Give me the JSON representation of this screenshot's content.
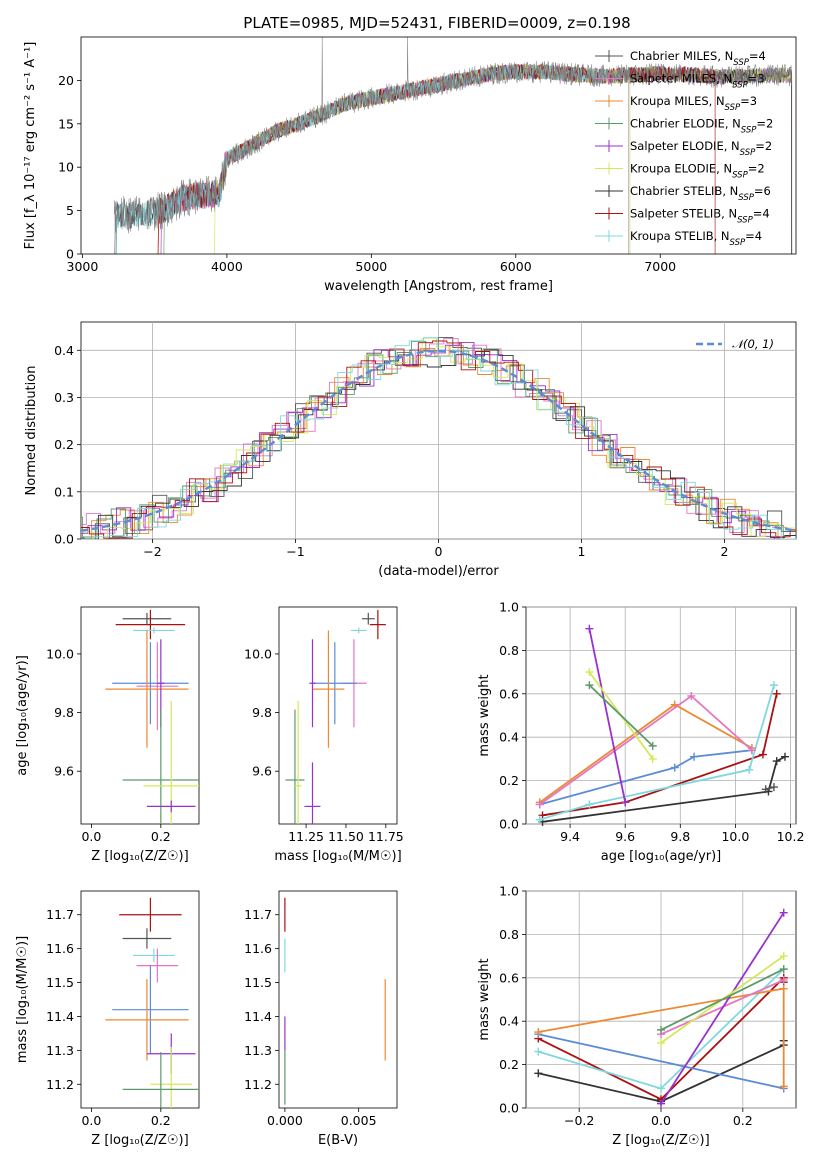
{
  "chart_data": [
    {
      "id": "spectrum",
      "type": "line",
      "title": "PLATE=0985, MJD=52431, FIBERID=0009, z=0.198",
      "xlabel": "wavelength [Angstrom, rest frame]",
      "ylabel": "Flux [f_λ 10⁻¹⁷ erg cm⁻² s⁻¹ A⁻¹]",
      "xlim": [
        2990,
        7940
      ],
      "ylim": [
        0,
        25
      ],
      "xticks": [
        3000,
        4000,
        5000,
        6000,
        7000
      ],
      "yticks": [
        0,
        5,
        10,
        15,
        20
      ],
      "grid": false,
      "legend_position": "right",
      "anchors_x": [
        3220,
        3400,
        3550,
        3700,
        3850,
        3950,
        4000,
        4100,
        4200,
        4350,
        4500,
        4650,
        4800,
        4950,
        5100,
        5250,
        5400,
        5550,
        5700,
        5850,
        6000,
        6200,
        6400,
        6600,
        6800,
        7000,
        7200,
        7400,
        7600,
        7800,
        7910
      ],
      "anchors_y": [
        4.5,
        4.6,
        5.0,
        6.5,
        6.8,
        7.0,
        11.0,
        11.8,
        12.8,
        14.2,
        15.0,
        16.0,
        17.2,
        17.8,
        18.3,
        18.8,
        19.3,
        19.8,
        20.3,
        20.8,
        21.0,
        21.0,
        20.7,
        20.5,
        20.6,
        20.8,
        20.7,
        20.4,
        20.5,
        20.6,
        20.6
      ],
      "series": [
        {
          "name": "Chabrier MILES, N_SSP=4",
          "legend_name": "Chabrier MILES",
          "nssp": "4",
          "color": "#555555"
        },
        {
          "name": "Salpeter MILES, N_SSP=3",
          "legend_name": "Salpeter MILES",
          "nssp": "3",
          "color": "#e377c2"
        },
        {
          "name": "Kroupa MILES, N_SSP=3",
          "legend_name": "Kroupa MILES",
          "nssp": "3",
          "color": "#ee8833"
        },
        {
          "name": "Chabrier ELODIE, N_SSP=2",
          "legend_name": "Chabrier ELODIE",
          "nssp": "2",
          "color": "#5d9a6a"
        },
        {
          "name": "Salpeter ELODIE, N_SSP=2",
          "legend_name": "Salpeter ELODIE",
          "nssp": "2",
          "color": "#9932cc"
        },
        {
          "name": "Kroupa ELODIE, N_SSP=2",
          "legend_name": "Kroupa ELODIE",
          "nssp": "2",
          "color": "#d4e85a"
        },
        {
          "name": "Chabrier STELIB, N_SSP=6",
          "legend_name": "Chabrier STELIB",
          "nssp": "6",
          "color": "#333333"
        },
        {
          "name": "Salpeter STELIB, N_SSP=4",
          "legend_name": "Salpeter STELIB",
          "nssp": "4",
          "color": "#aa1111"
        },
        {
          "name": "Kroupa STELIB, N_SSP=4",
          "legend_name": "Kroupa STELIB",
          "nssp": "4",
          "color": "#7fd8e0"
        }
      ]
    },
    {
      "id": "residual_hist",
      "type": "line",
      "xlabel": "(data-model)/error",
      "ylabel": "Normed distribution",
      "xlim": [
        -2.5,
        2.5
      ],
      "ylim": [
        0,
        0.46
      ],
      "xticks": [
        -2,
        -1,
        0,
        1,
        2
      ],
      "yticks": [
        0.0,
        0.1,
        0.2,
        0.3,
        0.4
      ],
      "grid": true,
      "legend_position": "top-right",
      "reference_curve": "𝒩(0, 1)",
      "reference_color": "#5b8dd6"
    },
    {
      "id": "age_vs_Z",
      "type": "scatter",
      "xlabel": "Z [log₁₀(Z/Z☉)]",
      "ylabel": "age  [log₁₀(age/yr)]",
      "xlim": [
        -0.03,
        0.31
      ],
      "ylim": [
        9.42,
        10.16
      ],
      "xticks": [
        0.0,
        0.2
      ],
      "yticks": [
        9.6,
        9.8,
        10.0
      ],
      "grid": false,
      "points": [
        {
          "color": "#555555",
          "x": 0.16,
          "y": 10.12,
          "xerr": 0.07,
          "yerr": 0.02
        },
        {
          "color": "#aa1111",
          "x": 0.17,
          "y": 10.1,
          "xerr": 0.1,
          "yerr": 0.05
        },
        {
          "color": "#7fd8e0",
          "x": 0.18,
          "y": 10.08,
          "xerr": 0.06,
          "yerr": 0.01
        },
        {
          "color": "#e377c2",
          "x": 0.19,
          "y": 9.89,
          "xerr": 0.06,
          "yerr": 0.15
        },
        {
          "color": "#5b8dd6",
          "x": 0.17,
          "y": 9.9,
          "xerr": 0.11,
          "yerr": 0.14
        },
        {
          "color": "#ee8833",
          "x": 0.16,
          "y": 9.88,
          "xerr": 0.12,
          "yerr": 0.2
        },
        {
          "color": "#9932cc",
          "x": 0.2,
          "y": 9.9,
          "xerr": 0.01,
          "yerr": 0.15
        },
        {
          "color": "#5d9a6a",
          "x": 0.2,
          "y": 9.57,
          "xerr": 0.11,
          "yerr": 0.24
        },
        {
          "color": "#d4e85a",
          "x": 0.23,
          "y": 9.55,
          "xerr": 0.08,
          "yerr": 0.29
        },
        {
          "color": "#9932cc",
          "x": 0.23,
          "y": 9.48,
          "xerr": 0.07,
          "yerr": 0.02
        }
      ]
    },
    {
      "id": "age_vs_mass",
      "type": "scatter",
      "xlabel": "mass [log₁₀(M/M☉)]",
      "ylabel": "",
      "xlim": [
        11.08,
        11.82
      ],
      "ylim": [
        9.42,
        10.16
      ],
      "xticks": [
        11.25,
        11.5,
        11.75
      ],
      "yticks": [
        9.6,
        9.8,
        10.0
      ],
      "grid": false,
      "points": [
        {
          "color": "#555555",
          "x": 11.64,
          "y": 10.12,
          "xerr": 0.04,
          "yerr": 0.02
        },
        {
          "color": "#aa1111",
          "x": 11.7,
          "y": 10.1,
          "xerr": 0.05,
          "yerr": 0.05
        },
        {
          "color": "#7fd8e0",
          "x": 11.58,
          "y": 10.08,
          "xerr": 0.05,
          "yerr": 0.01
        },
        {
          "color": "#e377c2",
          "x": 11.55,
          "y": 9.9,
          "xerr": 0.08,
          "yerr": 0.15
        },
        {
          "color": "#5b8dd6",
          "x": 11.43,
          "y": 9.9,
          "xerr": 0.14,
          "yerr": 0.14
        },
        {
          "color": "#ee8833",
          "x": 11.39,
          "y": 9.88,
          "xerr": 0.1,
          "yerr": 0.2
        },
        {
          "color": "#9932cc",
          "x": 11.29,
          "y": 9.9,
          "xerr": 0.02,
          "yerr": 0.15
        },
        {
          "color": "#5d9a6a",
          "x": 11.18,
          "y": 9.57,
          "xerr": 0.06,
          "yerr": 0.24
        },
        {
          "color": "#d4e85a",
          "x": 11.2,
          "y": 9.55,
          "xerr": 0.02,
          "yerr": 0.29
        },
        {
          "color": "#9932cc",
          "x": 11.29,
          "y": 9.48,
          "xerr": 0.05,
          "yerr": 0.15
        }
      ]
    },
    {
      "id": "mass_weight_vs_age",
      "type": "line",
      "xlabel": "age  [log₁₀(age/yr)]",
      "ylabel": "mass weight",
      "xlim": [
        9.24,
        10.22
      ],
      "ylim": [
        0,
        1.0
      ],
      "xticks": [
        9.4,
        9.6,
        9.8,
        10.0,
        10.2
      ],
      "yticks": [
        0.0,
        0.2,
        0.4,
        0.6,
        0.8,
        1.0
      ],
      "grid": true,
      "series": [
        {
          "color": "#333333",
          "x": [
            9.3,
            10.12,
            10.15,
            10.18
          ],
          "y": [
            0.01,
            0.15,
            0.29,
            0.31
          ]
        },
        {
          "color": "#555555",
          "x": [
            10.11,
            10.14
          ],
          "y": [
            0.16,
            0.17
          ]
        },
        {
          "color": "#aa1111",
          "x": [
            9.3,
            9.6,
            10.1,
            10.15
          ],
          "y": [
            0.04,
            0.1,
            0.32,
            0.6
          ]
        },
        {
          "color": "#7fd8e0",
          "x": [
            9.29,
            9.47,
            10.05,
            10.14
          ],
          "y": [
            0.02,
            0.09,
            0.25,
            0.64
          ]
        },
        {
          "color": "#5b8dd6",
          "x": [
            9.29,
            9.78,
            9.85,
            10.06
          ],
          "y": [
            0.09,
            0.26,
            0.31,
            0.34
          ]
        },
        {
          "color": "#ee8833",
          "x": [
            9.29,
            9.78,
            10.06
          ],
          "y": [
            0.1,
            0.55,
            0.35
          ]
        },
        {
          "color": "#e377c2",
          "x": [
            9.29,
            9.84,
            10.06
          ],
          "y": [
            0.09,
            0.59,
            0.34
          ]
        },
        {
          "color": "#9932cc",
          "x": [
            9.47,
            9.6
          ],
          "y": [
            0.9,
            0.1
          ]
        },
        {
          "color": "#d4e85a",
          "x": [
            9.47,
            9.7
          ],
          "y": [
            0.7,
            0.3
          ]
        },
        {
          "color": "#5d9a6a",
          "x": [
            9.47,
            9.7
          ],
          "y": [
            0.64,
            0.36
          ]
        }
      ]
    },
    {
      "id": "mass_vs_Z",
      "type": "scatter",
      "xlabel": "Z [log₁₀(Z/Z☉)]",
      "ylabel": "mass [log₁₀(M/M☉)]",
      "xlim": [
        -0.03,
        0.31
      ],
      "ylim": [
        11.13,
        11.77
      ],
      "xticks": [
        0.0,
        0.2
      ],
      "yticks": [
        11.2,
        11.3,
        11.4,
        11.5,
        11.6,
        11.7
      ],
      "grid": false,
      "points": [
        {
          "color": "#aa1111",
          "x": 0.17,
          "y": 11.7,
          "xerr": 0.09,
          "yerr": 0.05
        },
        {
          "color": "#555555",
          "x": 0.16,
          "y": 11.63,
          "xerr": 0.07,
          "yerr": 0.03
        },
        {
          "color": "#7fd8e0",
          "x": 0.18,
          "y": 11.58,
          "xerr": 0.06,
          "yerr": 0.02
        },
        {
          "color": "#e377c2",
          "x": 0.19,
          "y": 11.55,
          "xerr": 0.06,
          "yerr": 0.05
        },
        {
          "color": "#5b8dd6",
          "x": 0.17,
          "y": 11.42,
          "xerr": 0.11,
          "yerr": 0.13
        },
        {
          "color": "#ee8833",
          "x": 0.16,
          "y": 11.39,
          "xerr": 0.12,
          "yerr": 0.12
        },
        {
          "color": "#9932cc",
          "x": 0.23,
          "y": 11.29,
          "xerr": 0.07,
          "yerr": 0.06
        },
        {
          "color": "#d4e85a",
          "x": 0.23,
          "y": 11.2,
          "xerr": 0.06,
          "yerr": 0.11
        },
        {
          "color": "#5d9a6a",
          "x": 0.2,
          "y": 11.185,
          "xerr": 0.11,
          "yerr": 0.11
        }
      ]
    },
    {
      "id": "mass_vs_EBV",
      "type": "scatter",
      "xlabel": "E(B-V)",
      "ylabel": "",
      "xlim": [
        -0.0004,
        0.0076
      ],
      "ylim": [
        11.13,
        11.77
      ],
      "xticks": [
        0.0,
        0.005
      ],
      "xtick_labels": [
        "0.000",
        "0.005"
      ],
      "yticks": [
        11.2,
        11.3,
        11.4,
        11.5,
        11.6,
        11.7
      ],
      "grid": false,
      "points": [
        {
          "color": "#aa1111",
          "x": 0.0,
          "y": 11.7,
          "xerr": 0,
          "yerr": 0.05
        },
        {
          "color": "#7fd8e0",
          "x": 0.0,
          "y": 11.58,
          "xerr": 0,
          "yerr": 0.05
        },
        {
          "color": "#9932cc",
          "x": 0.0,
          "y": 11.35,
          "xerr": 0,
          "yerr": 0.05
        },
        {
          "color": "#5d9a6a",
          "x": 0.0,
          "y": 11.22,
          "xerr": 0,
          "yerr": 0.08
        },
        {
          "color": "#ee8833",
          "x": 0.0068,
          "y": 11.39,
          "xerr": 0,
          "yerr": 0.12
        }
      ]
    },
    {
      "id": "mass_weight_vs_Z",
      "type": "line",
      "xlabel": "Z [log₁₀(Z/Z☉)]",
      "ylabel": "mass weight",
      "xlim": [
        -0.33,
        0.33
      ],
      "ylim": [
        0,
        1.0
      ],
      "xticks": [
        -0.2,
        0.0,
        0.2
      ],
      "xtick_labels": [
        "−0.2",
        "0.0",
        "0.2"
      ],
      "yticks": [
        0.0,
        0.2,
        0.4,
        0.6,
        0.8,
        1.0
      ],
      "grid": true,
      "series": [
        {
          "color": "#333333",
          "x": [
            -0.3,
            0.0,
            0.3,
            0.3
          ],
          "y": [
            0.16,
            0.03,
            0.29,
            0.31
          ]
        },
        {
          "color": "#aa1111",
          "x": [
            -0.3,
            0.0,
            0.3,
            0.3
          ],
          "y": [
            0.32,
            0.04,
            0.6,
            0.58
          ]
        },
        {
          "color": "#7fd8e0",
          "x": [
            -0.3,
            0.0,
            0.3
          ],
          "y": [
            0.26,
            0.09,
            0.64
          ]
        },
        {
          "color": "#5b8dd6",
          "x": [
            -0.3,
            0.3
          ],
          "y": [
            0.34,
            0.09
          ]
        },
        {
          "color": "#ee8833",
          "x": [
            -0.3,
            0.3,
            0.3
          ],
          "y": [
            0.35,
            0.55,
            0.1
          ]
        },
        {
          "color": "#e377c2",
          "x": [
            0.0,
            0.3
          ],
          "y": [
            0.34,
            0.59
          ]
        },
        {
          "color": "#9932cc",
          "x": [
            0.0,
            0.3
          ],
          "y": [
            0.02,
            0.9
          ]
        },
        {
          "color": "#d4e85a",
          "x": [
            0.0,
            0.3
          ],
          "y": [
            0.3,
            0.7
          ]
        },
        {
          "color": "#5d9a6a",
          "x": [
            0.0,
            0.3
          ],
          "y": [
            0.36,
            0.64
          ]
        }
      ]
    }
  ]
}
